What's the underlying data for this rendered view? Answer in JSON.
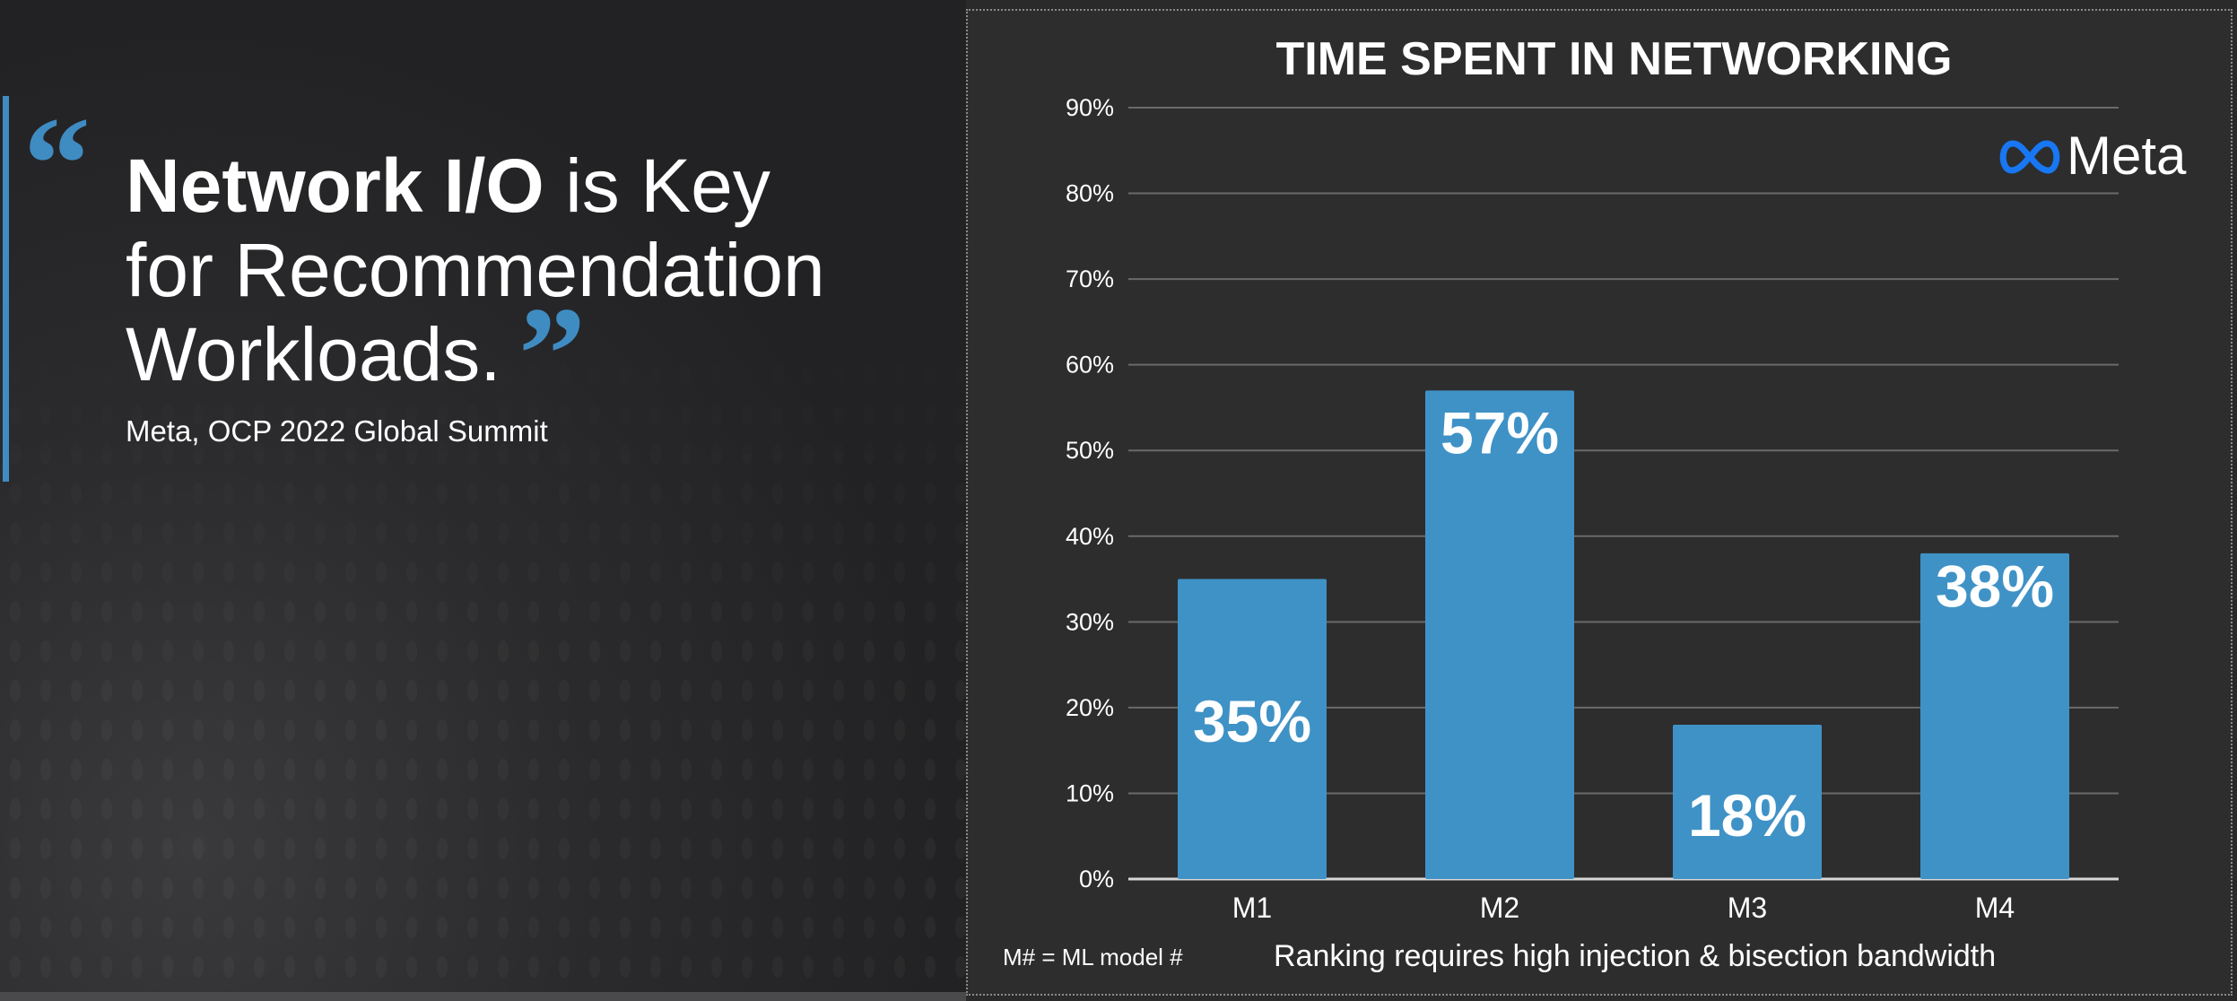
{
  "slide": {
    "headline_bold": "Network I/O",
    "headline_rest_1": " is Key",
    "headline_line2": "for Recommendation",
    "headline_line3": "Workloads.",
    "attribution": "Meta, OCP 2022 Global Summit",
    "accent_color": "#3f8cc2"
  },
  "logo": {
    "text": "Meta",
    "icon": "meta-infinity-icon",
    "icon_color": "#1877f2"
  },
  "chart_data": {
    "type": "bar",
    "title": "TIME SPENT IN NETWORKING",
    "categories": [
      "M1",
      "M2",
      "M3",
      "M4"
    ],
    "values": [
      35,
      57,
      18,
      38
    ],
    "data_labels": [
      "35%",
      "57%",
      "18%",
      "38%"
    ],
    "y_ticks": [
      "0%",
      "10%",
      "20%",
      "30%",
      "40%",
      "50%",
      "60%",
      "70%",
      "80%",
      "90%"
    ],
    "ylim": [
      0,
      90
    ],
    "grid": true,
    "bar_color": "#3f92c6",
    "xlabel": "",
    "ylabel": ""
  },
  "footnotes": {
    "legend_note": "M# = ML model #",
    "caption": "Ranking requires high injection & bisection bandwidth"
  }
}
